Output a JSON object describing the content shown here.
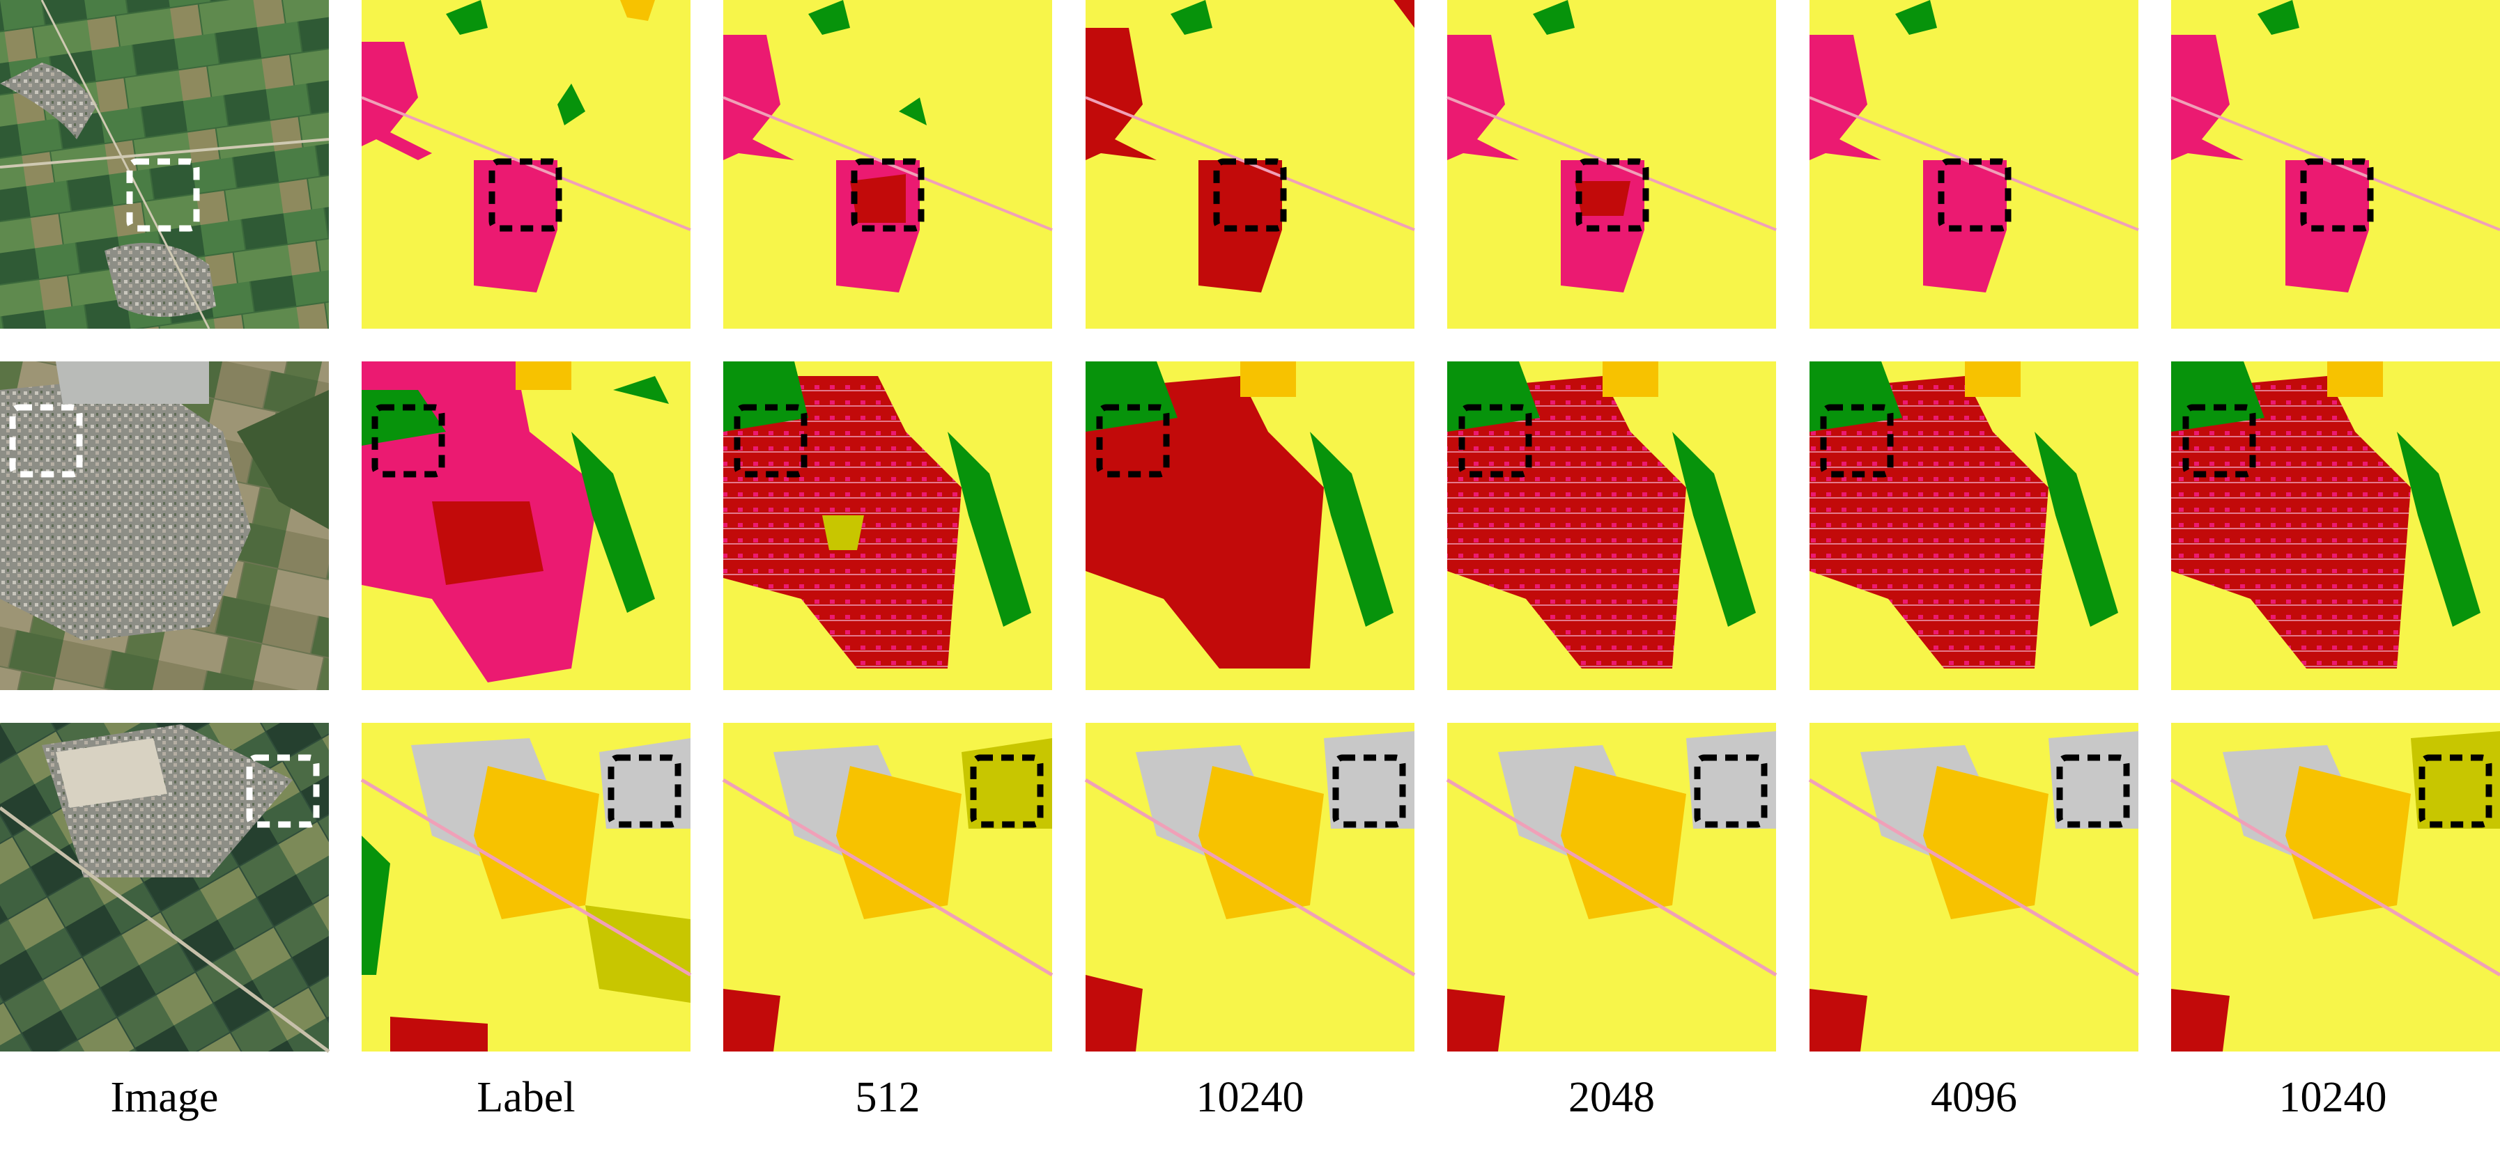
{
  "columns": [
    "Image",
    "Label",
    "512",
    "10240",
    "2048",
    "4096",
    "10240"
  ],
  "palette": {
    "cropland_yellow": "#f7f54a",
    "urban_pink": "#eb1a71",
    "urban_dark_red": "#c20a0a",
    "forest_green": "#07930b",
    "industrial_orange": "#f7c200",
    "olive_crop": "#c8c600",
    "bare_gray": "#c8c8c8",
    "road_pink": "#f0a0b8",
    "water_blue": "#2aa0d8",
    "highlight_box_on_photo": "#ffffff",
    "highlight_box_on_map": "#000000"
  },
  "icons": {
    "highlight_box": "dashed-rounded-rectangle"
  }
}
